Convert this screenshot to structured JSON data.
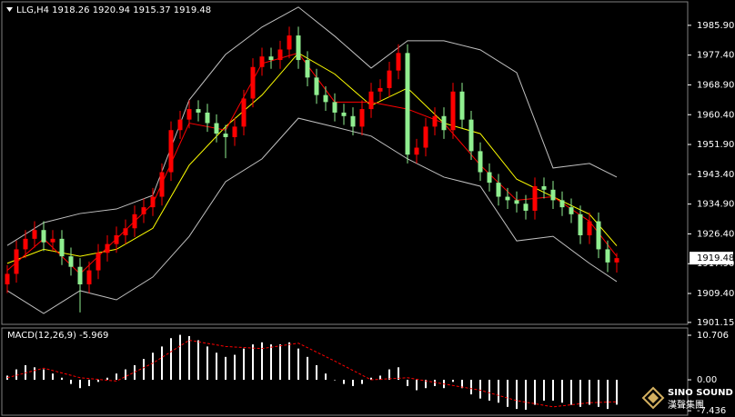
{
  "chart_data": [
    {
      "type": "candlestick",
      "title": "LLG,H4",
      "up_color": "#ff0000",
      "down_color": "#90ee90",
      "ylim": [
        1900.6,
        1992.6
      ],
      "yticks": [
        {
          "value": 1985.9,
          "label": "1985.90"
        },
        {
          "value": 1977.4,
          "label": "1977.40"
        },
        {
          "value": 1968.9,
          "label": "1968.90"
        },
        {
          "value": 1960.4,
          "label": "1960.40"
        },
        {
          "value": 1951.9,
          "label": "1951.90"
        },
        {
          "value": 1943.4,
          "label": "1943.40"
        },
        {
          "value": 1934.9,
          "label": "1934.90"
        },
        {
          "value": 1926.4,
          "label": "1926.40"
        },
        {
          "value": 1917.9,
          "label": "1917.90"
        },
        {
          "value": 1909.4,
          "label": "1909.40"
        },
        {
          "value": 1901.15,
          "label": "1901.15"
        }
      ],
      "open": [
        1912,
        1915,
        1922,
        1925,
        1927.5,
        1924,
        1925,
        1920,
        1917,
        1912,
        1916,
        1921,
        1923.5,
        1926,
        1928,
        1932,
        1934,
        1937,
        1944,
        1956,
        1959,
        1962,
        1961,
        1958,
        1955,
        1954,
        1957,
        1965,
        1974,
        1977,
        1976,
        1979,
        1983,
        1976,
        1971,
        1966,
        1964,
        1961,
        1960,
        1957,
        1962,
        1967,
        1968,
        1973,
        1978,
        1949,
        1951,
        1957,
        1960,
        1956,
        1967,
        1959,
        1950,
        1944,
        1941,
        1937,
        1936,
        1935,
        1933,
        1940,
        1939,
        1936,
        1934,
        1932,
        1926,
        1930,
        1922,
        1918.26
      ],
      "high": [
        1917.5,
        1924.5,
        1927.5,
        1930,
        1930,
        1927.5,
        1927.5,
        1922.5,
        1919.5,
        1918.5,
        1923.5,
        1926,
        1928.5,
        1930.5,
        1934.5,
        1936.5,
        1939.5,
        1946.5,
        1958.5,
        1961.5,
        1964.5,
        1964.5,
        1963.5,
        1960.5,
        1957.5,
        1959.5,
        1967.5,
        1976.5,
        1979.5,
        1979.5,
        1981.5,
        1985.5,
        1985.5,
        1978.5,
        1973.5,
        1968.5,
        1966.5,
        1963.5,
        1962.5,
        1964.5,
        1969.5,
        1970.5,
        1975.5,
        1980.5,
        1980.5,
        1953.5,
        1959.5,
        1962.5,
        1962.5,
        1969.5,
        1969.5,
        1961.5,
        1952.5,
        1946.5,
        1943.5,
        1939.5,
        1938.5,
        1937.5,
        1942.5,
        1942.5,
        1941.5,
        1938.5,
        1936.5,
        1934.5,
        1932.5,
        1932.5,
        1924.5,
        1920.94
      ],
      "low": [
        1909.5,
        1912.5,
        1919.5,
        1922.5,
        1921.5,
        1921.5,
        1917.5,
        1914.5,
        1904,
        1909.5,
        1913.5,
        1918.5,
        1921,
        1923.5,
        1925.5,
        1929.5,
        1931.5,
        1934.5,
        1941.5,
        1953.5,
        1956.5,
        1958.5,
        1955.5,
        1952.5,
        1948,
        1951.5,
        1954.5,
        1962.5,
        1971.5,
        1973.5,
        1973.5,
        1976.5,
        1973.5,
        1968.5,
        1963.5,
        1961.5,
        1958.5,
        1957.5,
        1954.5,
        1954.5,
        1959.5,
        1964.5,
        1965.5,
        1970.5,
        1946.5,
        1946.5,
        1948.5,
        1954.5,
        1953.5,
        1953.5,
        1956.5,
        1947.5,
        1941.5,
        1938.5,
        1934.5,
        1933.5,
        1932.5,
        1930.5,
        1930.5,
        1936.5,
        1933.5,
        1931.5,
        1929.5,
        1923.5,
        1923.5,
        1919.5,
        1915.5,
        1915.37
      ],
      "close": [
        1915,
        1922,
        1925,
        1927.5,
        1924,
        1925,
        1920,
        1917,
        1912,
        1916,
        1921,
        1923.5,
        1926,
        1928,
        1932,
        1934,
        1937,
        1944,
        1956,
        1959,
        1962,
        1961,
        1958,
        1955,
        1954,
        1957,
        1965,
        1974,
        1977,
        1976,
        1979,
        1983,
        1976,
        1971,
        1966,
        1964,
        1961,
        1960,
        1957,
        1962,
        1967,
        1968,
        1973,
        1978,
        1949,
        1951,
        1957,
        1960,
        1956,
        1967,
        1959,
        1950,
        1944,
        1941,
        1937,
        1936,
        1935,
        1933,
        1940,
        1939,
        1936,
        1934,
        1932,
        1926,
        1930,
        1922,
        1918.26,
        1919.48
      ],
      "lines": [
        {
          "color": "#c0c0c0",
          "x": [
            0,
            4,
            8,
            12,
            16,
            20,
            24,
            28,
            32,
            36,
            40,
            44,
            48,
            52,
            56,
            60,
            64,
            67
          ],
          "values": [
            1923.1,
            1929.6,
            1932.2,
            1933.5,
            1937.4,
            1964.6,
            1977.6,
            1985.4,
            1991.1,
            1982.8,
            1973.7,
            1981.5,
            1981.5,
            1978.9,
            1972.4,
            1945.2,
            1946.5,
            1942.6
          ]
        },
        {
          "color": "#c0c0c0",
          "x": [
            0,
            4,
            8,
            12,
            16,
            20,
            24,
            28,
            32,
            36,
            40,
            44,
            48,
            52,
            56,
            60,
            64,
            67
          ],
          "values": [
            1910.2,
            1903.7,
            1910.2,
            1907.6,
            1914.1,
            1925.7,
            1941.3,
            1947.8,
            1959.4,
            1956.9,
            1954.3,
            1947.8,
            1942.6,
            1940.0,
            1924.4,
            1925.7,
            1918.0,
            1912.8
          ]
        },
        {
          "color": "#ffff00",
          "x": [
            0,
            4,
            8,
            12,
            16,
            20,
            24,
            28,
            32,
            36,
            40,
            44,
            48,
            52,
            56,
            60,
            64,
            67
          ],
          "values": [
            1918,
            1922,
            1920,
            1922,
            1928,
            1946,
            1957,
            1966,
            1978,
            1972,
            1963,
            1968,
            1958,
            1955,
            1942,
            1937,
            1932,
            1923
          ]
        },
        {
          "color": "#ff0000",
          "x": [
            0,
            4,
            8,
            12,
            16,
            20,
            24,
            28,
            32,
            36,
            40,
            44,
            48,
            52,
            56,
            60,
            64,
            67
          ],
          "values": [
            1916,
            1925,
            1915,
            1925,
            1935,
            1958,
            1956,
            1975,
            1978,
            1964,
            1964,
            1962,
            1958,
            1946,
            1936,
            1937,
            1930,
            1920
          ]
        }
      ]
    },
    {
      "type": "bar",
      "title": "MACD(12,26,9)",
      "color": "#ffffff",
      "ylim": [
        -8.5,
        12.45
      ],
      "yticks": [
        10.706,
        {
          "value": 0,
          "label": "0.00"
        },
        -7.436
      ],
      "values": [
        1.0,
        2.5,
        3.5,
        3.0,
        2.5,
        1.5,
        0.5,
        -1.0,
        -2.0,
        -1.5,
        -0.5,
        0.5,
        1.5,
        2.5,
        3.5,
        5.0,
        6.5,
        8.0,
        10.0,
        10.8,
        10.5,
        9.5,
        8.0,
        6.5,
        5.5,
        6.0,
        7.5,
        8.5,
        9.0,
        8.5,
        8.5,
        9.0,
        7.5,
        5.5,
        3.5,
        1.5,
        0.0,
        -1.0,
        -1.5,
        -1.0,
        0.5,
        1.0,
        2.5,
        3.0,
        -1.5,
        -2.5,
        -2.0,
        -1.5,
        -2.0,
        -0.5,
        -2.0,
        -3.5,
        -4.5,
        -5.0,
        -5.5,
        -6.5,
        -7.0,
        -7.2,
        -6.0,
        -5.0,
        -5.0,
        -5.5,
        -6.0,
        -6.5,
        -6.0,
        -6.5,
        -7.0,
        -5.969
      ],
      "signal": {
        "color": "#ff0000",
        "dashed": true,
        "x": [
          0,
          4,
          8,
          12,
          16,
          20,
          24,
          28,
          32,
          36,
          40,
          44,
          48,
          52,
          56,
          60,
          64,
          67
        ],
        "values": [
          0.5,
          2.8,
          0.5,
          -0.3,
          4.0,
          9.5,
          8.0,
          7.5,
          8.8,
          4.5,
          0.0,
          0.5,
          -1.0,
          -2.5,
          -5.0,
          -6.5,
          -5.5,
          -5.292
        ]
      }
    }
  ],
  "logo": {
    "name": "SINO SOUND",
    "subtitle": "漢聲集團"
  }
}
